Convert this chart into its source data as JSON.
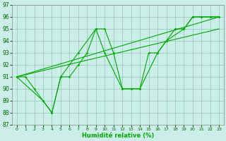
{
  "xlabel": "Humidité relative (%)",
  "bg_color": "#cceee8",
  "grid_color": "#99ccbb",
  "line_color": "#00aa00",
  "xlim": [
    -0.5,
    23.5
  ],
  "ylim": [
    87,
    97
  ],
  "xticks": [
    0,
    1,
    2,
    3,
    4,
    5,
    6,
    7,
    8,
    9,
    10,
    11,
    12,
    13,
    14,
    15,
    16,
    17,
    18,
    19,
    20,
    21,
    22,
    23
  ],
  "yticks": [
    87,
    88,
    89,
    90,
    91,
    92,
    93,
    94,
    95,
    96,
    97
  ],
  "series": [
    {
      "x": [
        0,
        1,
        2,
        3,
        4,
        5,
        6,
        7,
        8,
        9,
        10,
        11,
        12,
        13,
        14,
        15,
        16,
        17,
        18,
        19,
        20,
        21,
        22,
        23
      ],
      "y": [
        91,
        91,
        90,
        89,
        88,
        91,
        91,
        92,
        93,
        95,
        95,
        93,
        90,
        90,
        90,
        93,
        93,
        94,
        95,
        95,
        96,
        96,
        96,
        96
      ],
      "style": "line_marker"
    },
    {
      "x": [
        0,
        3,
        4,
        5,
        7,
        9,
        10,
        12,
        13,
        14,
        16,
        17,
        19,
        20,
        21,
        22,
        23
      ],
      "y": [
        91,
        89,
        88,
        91,
        93,
        95,
        93,
        90,
        90,
        90,
        93,
        94,
        95,
        96,
        96,
        96,
        96
      ],
      "style": "line_marker"
    },
    {
      "x": [
        0,
        23
      ],
      "y": [
        91,
        96
      ],
      "style": "straight"
    },
    {
      "x": [
        0,
        23
      ],
      "y": [
        91,
        95
      ],
      "style": "straight"
    }
  ]
}
